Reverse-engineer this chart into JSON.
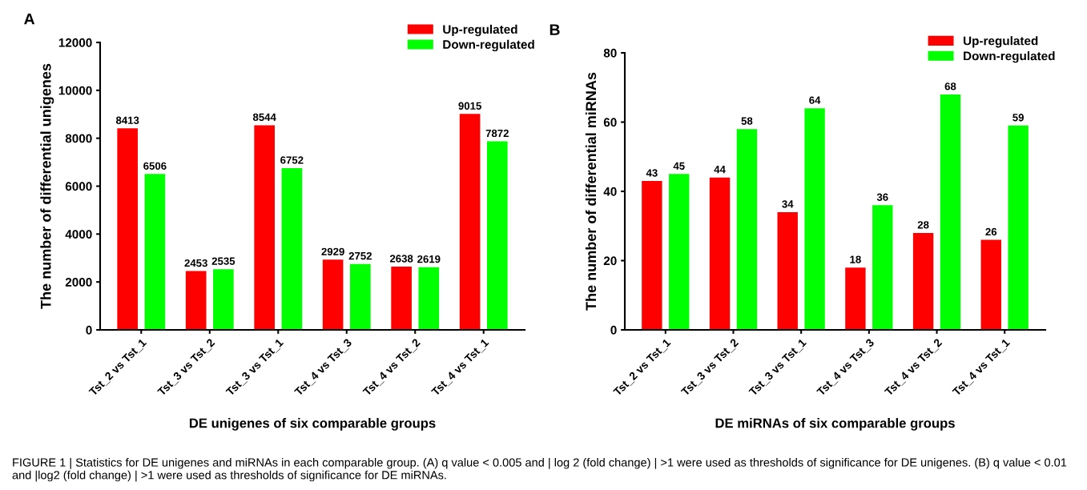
{
  "chart_data": [
    {
      "type": "bar",
      "title": "A",
      "xlabel": "DE unigenes of six comparable groups",
      "ylabel": "The number of differential unigenes",
      "categories": [
        "Tst_2 vs Tst_1",
        "Tst_3 vs Tst_2",
        "Tst_3 vs Tst_1",
        "Tst_4 vs Tst_3",
        "Tst_4 vs Tst_2",
        "Tst_4 vs Tst_1"
      ],
      "series": [
        {
          "name": "Up-regulated",
          "color": "#ff0000",
          "values": [
            8413,
            2453,
            8544,
            2929,
            2638,
            9015
          ]
        },
        {
          "name": "Down-regulated",
          "color": "#00ff00",
          "values": [
            6506,
            2535,
            6752,
            2752,
            2619,
            7872
          ]
        }
      ],
      "ylim": [
        0,
        12000
      ],
      "yticks": [
        0,
        2000,
        4000,
        6000,
        8000,
        10000,
        12000
      ],
      "data_labels": true,
      "legend": "top right",
      "grid": false,
      "annotations": [
        "FIGURE 1 | Statistics for DE unigenes and miRNAs in each comparable group. (A) q value < 0.005 and | log 2 (fold change) | >1 were used as thresholds of significance for DE unigenes. (B) q value < 0.01 and |log2 (fold change) | >1 were used as thresholds of significance for DE miRNAs."
      ]
    },
    {
      "type": "bar",
      "title": "B",
      "xlabel": "DE miRNAs of six comparable groups",
      "ylabel": "The number of differential miRNAs",
      "categories": [
        "Tst_2 vs Tst_1",
        "Tst_3 vs Tst_2",
        "Tst_3 vs Tst_1",
        "Tst_4 vs Tst_3",
        "Tst_4 vs Tst_2",
        "Tst_4 vs Tst_1"
      ],
      "series": [
        {
          "name": "Up-regulated",
          "color": "#ff0000",
          "values": [
            43,
            44,
            34,
            18,
            28,
            26
          ]
        },
        {
          "name": "Down-regulated",
          "color": "#00ff00",
          "values": [
            45,
            58,
            64,
            36,
            68,
            59
          ]
        }
      ],
      "ylim": [
        0,
        80
      ],
      "yticks": [
        0,
        20,
        40,
        60,
        80
      ],
      "data_labels": true,
      "legend": "top right",
      "grid": false
    }
  ]
}
